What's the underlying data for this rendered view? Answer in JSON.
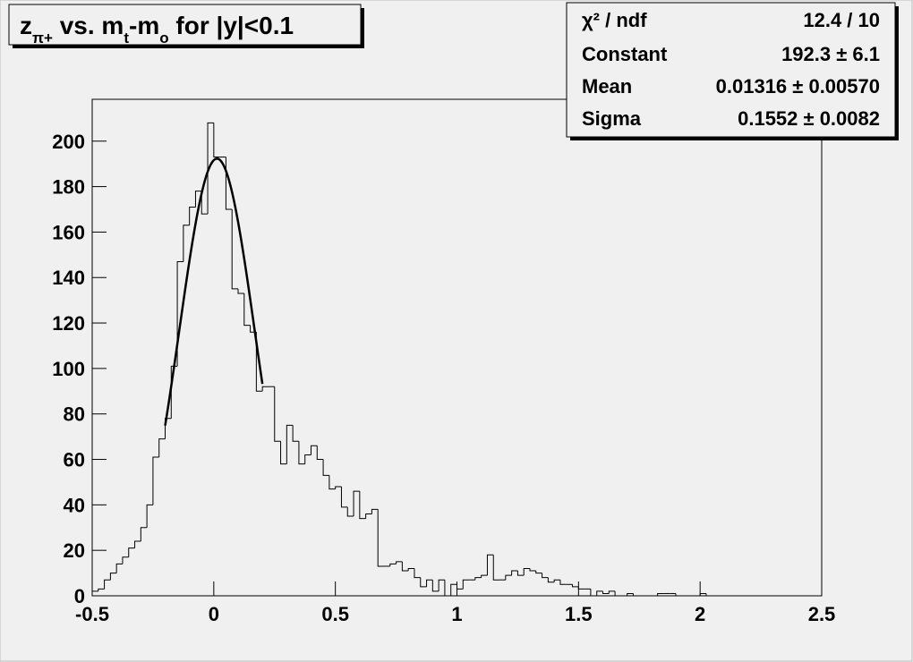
{
  "chart_data": {
    "type": "histogram",
    "title": [
      {
        "text": "z"
      },
      {
        "text": "π+",
        "sub": true
      },
      {
        "text": " vs. m"
      },
      {
        "text": "t",
        "sub": true
      },
      {
        "text": "-m"
      },
      {
        "text": "o",
        "sub": true
      },
      {
        "text": " for |y|<0.1"
      }
    ],
    "bins": [
      -0.5,
      -0.475,
      -0.45,
      -0.425,
      -0.4,
      -0.375,
      -0.35,
      -0.325,
      -0.3,
      -0.275,
      -0.25,
      -0.225,
      -0.2,
      -0.175,
      -0.15,
      -0.125,
      -0.1,
      -0.075,
      -0.05,
      -0.025,
      0,
      0.025,
      0.05,
      0.075,
      0.1,
      0.125,
      0.15,
      0.175,
      0.2,
      0.225,
      0.25,
      0.275,
      0.3,
      0.325,
      0.35,
      0.375,
      0.4,
      0.425,
      0.45,
      0.475,
      0.5,
      0.525,
      0.55,
      0.575,
      0.6,
      0.625,
      0.65,
      0.675,
      0.7,
      0.725,
      0.75,
      0.775,
      0.8,
      0.825,
      0.85,
      0.875,
      0.9,
      0.925,
      0.95,
      0.975,
      1,
      1.025,
      1.05,
      1.075,
      1.1,
      1.125,
      1.15,
      1.175,
      1.2,
      1.225,
      1.25,
      1.275,
      1.3,
      1.325,
      1.35,
      1.375,
      1.4,
      1.425,
      1.45,
      1.475,
      1.5,
      1.525,
      1.55,
      1.575,
      1.6,
      1.625,
      1.65,
      1.675,
      1.7,
      1.725,
      1.75,
      1.775,
      1.8,
      1.825,
      1.85,
      1.875,
      1.9,
      1.925,
      1.95,
      1.975,
      2,
      2.025,
      2.05,
      2.075,
      2.1,
      2.125,
      2.15,
      2.175,
      2.2,
      2.225,
      2.25,
      2.275,
      2.3,
      2.325,
      2.35,
      2.375,
      2.4,
      2.425,
      2.45,
      2.475,
      2.5
    ],
    "values": [
      2,
      3,
      7,
      10,
      14,
      17,
      21,
      24,
      30,
      40,
      61,
      69,
      78,
      101,
      147,
      163,
      171,
      178,
      168,
      208,
      193,
      193,
      170,
      135,
      133,
      119,
      116,
      90,
      92,
      92,
      68,
      58,
      75,
      68,
      58,
      62,
      66,
      60,
      53,
      47,
      48,
      39,
      35,
      46,
      34,
      36,
      38,
      13,
      13,
      14,
      15,
      11,
      12,
      8,
      4,
      7,
      2,
      7,
      0,
      5,
      3,
      7,
      7,
      8,
      9,
      18,
      7,
      7,
      9,
      11,
      9,
      12,
      11,
      10,
      8,
      6,
      7,
      5,
      5,
      4,
      3,
      3,
      0,
      2,
      1,
      2,
      0,
      0,
      1,
      0,
      0,
      0,
      0,
      1,
      1,
      1,
      0,
      0,
      0,
      0,
      1,
      0,
      0,
      0,
      0,
      0,
      0,
      0,
      0,
      0,
      0,
      0,
      0,
      0,
      0,
      0,
      0,
      0,
      0,
      0
    ],
    "color": "#000000",
    "xlim": [
      -0.5,
      2.5
    ],
    "xticks": [
      -0.5,
      0,
      0.5,
      1,
      1.5,
      2,
      2.5
    ],
    "ylim": [
      0,
      218.4
    ],
    "yticks": [
      0,
      20,
      40,
      60,
      80,
      100,
      120,
      140,
      160,
      180,
      200
    ],
    "fit": {
      "range": [
        -0.2,
        0.2
      ],
      "stats": [
        {
          "name": "χ² / ndf",
          "label": "12.4 / 10"
        },
        {
          "name": "Constant",
          "value": 192.3,
          "error": 6.1,
          "label": "192.3 ± 6.1"
        },
        {
          "name": "Mean",
          "value": 0.01316,
          "error": 0.0057,
          "label": "0.01316 ± 0.00570"
        },
        {
          "name": "Sigma",
          "value": 0.1552,
          "error": 0.0082,
          "label": "0.1552 ± 0.0082"
        }
      ]
    }
  }
}
